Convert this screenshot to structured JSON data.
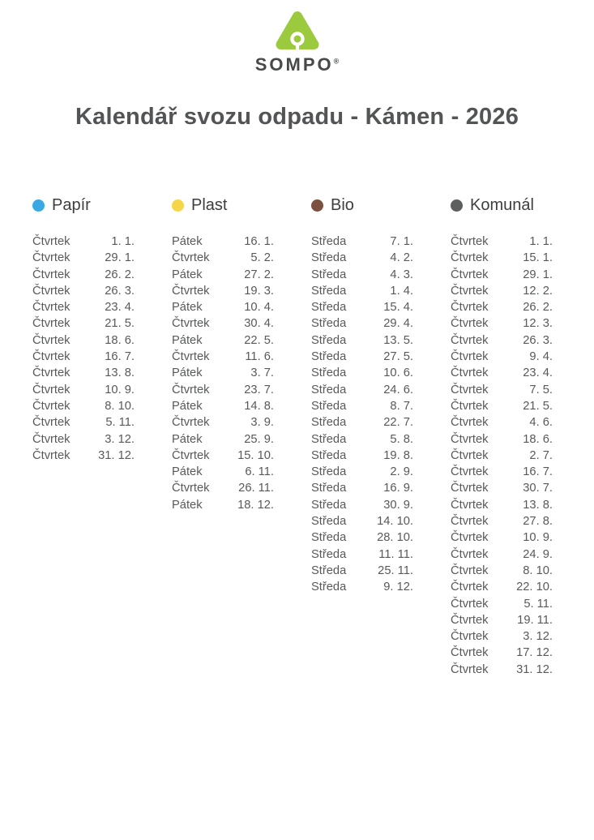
{
  "logo": {
    "brand": "SOMPO",
    "registered_mark": "®",
    "icon_green": "#9bca3e",
    "text_color": "#47484a"
  },
  "title": "Kalendář svozu odpadu - Kámen - 2026",
  "columns": [
    {
      "id": "papir",
      "label": "Papír",
      "dot_color": "#3aa9e3",
      "rows": [
        {
          "day": "Čtvrtek",
          "date": "1. 1."
        },
        {
          "day": "Čtvrtek",
          "date": "29. 1."
        },
        {
          "day": "Čtvrtek",
          "date": "26. 2."
        },
        {
          "day": "Čtvrtek",
          "date": "26. 3."
        },
        {
          "day": "Čtvrtek",
          "date": "23. 4."
        },
        {
          "day": "Čtvrtek",
          "date": "21. 5."
        },
        {
          "day": "Čtvrtek",
          "date": "18. 6."
        },
        {
          "day": "Čtvrtek",
          "date": "16. 7."
        },
        {
          "day": "Čtvrtek",
          "date": "13. 8."
        },
        {
          "day": "Čtvrtek",
          "date": "10. 9."
        },
        {
          "day": "Čtvrtek",
          "date": "8. 10."
        },
        {
          "day": "Čtvrtek",
          "date": "5. 11."
        },
        {
          "day": "Čtvrtek",
          "date": "3. 12."
        },
        {
          "day": "Čtvrtek",
          "date": "31. 12."
        }
      ]
    },
    {
      "id": "plast",
      "label": "Plast",
      "dot_color": "#f5d54a",
      "rows": [
        {
          "day": "Pátek",
          "date": "16. 1."
        },
        {
          "day": "Čtvrtek",
          "date": "5. 2."
        },
        {
          "day": "Pátek",
          "date": "27. 2."
        },
        {
          "day": "Čtvrtek",
          "date": "19. 3."
        },
        {
          "day": "Pátek",
          "date": "10. 4."
        },
        {
          "day": "Čtvrtek",
          "date": "30. 4."
        },
        {
          "day": "Pátek",
          "date": "22. 5."
        },
        {
          "day": "Čtvrtek",
          "date": "11. 6."
        },
        {
          "day": "Pátek",
          "date": "3. 7."
        },
        {
          "day": "Čtvrtek",
          "date": "23. 7."
        },
        {
          "day": "Pátek",
          "date": "14. 8."
        },
        {
          "day": "Čtvrtek",
          "date": "3. 9."
        },
        {
          "day": "Pátek",
          "date": "25. 9."
        },
        {
          "day": "Čtvrtek",
          "date": "15. 10."
        },
        {
          "day": "Pátek",
          "date": "6. 11."
        },
        {
          "day": "Čtvrtek",
          "date": "26. 11."
        },
        {
          "day": "Pátek",
          "date": "18. 12."
        }
      ]
    },
    {
      "id": "bio",
      "label": "Bio",
      "dot_color": "#7c5140",
      "rows": [
        {
          "day": "Středa",
          "date": "7. 1."
        },
        {
          "day": "Středa",
          "date": "4. 2."
        },
        {
          "day": "Středa",
          "date": "4. 3."
        },
        {
          "day": "Středa",
          "date": "1. 4."
        },
        {
          "day": "Středa",
          "date": "15. 4."
        },
        {
          "day": "Středa",
          "date": "29. 4."
        },
        {
          "day": "Středa",
          "date": "13. 5."
        },
        {
          "day": "Středa",
          "date": "27. 5."
        },
        {
          "day": "Středa",
          "date": "10. 6."
        },
        {
          "day": "Středa",
          "date": "24. 6."
        },
        {
          "day": "Středa",
          "date": "8. 7."
        },
        {
          "day": "Středa",
          "date": "22. 7."
        },
        {
          "day": "Středa",
          "date": "5. 8."
        },
        {
          "day": "Středa",
          "date": "19. 8."
        },
        {
          "day": "Středa",
          "date": "2. 9."
        },
        {
          "day": "Středa",
          "date": "16. 9."
        },
        {
          "day": "Středa",
          "date": "30. 9."
        },
        {
          "day": "Středa",
          "date": "14. 10."
        },
        {
          "day": "Středa",
          "date": "28. 10."
        },
        {
          "day": "Středa",
          "date": "11. 11."
        },
        {
          "day": "Středa",
          "date": "25. 11."
        },
        {
          "day": "Středa",
          "date": "9. 12."
        }
      ]
    },
    {
      "id": "komunal",
      "label": "Komunál",
      "dot_color": "#5d5e5e",
      "rows": [
        {
          "day": "Čtvrtek",
          "date": "1. 1."
        },
        {
          "day": "Čtvrtek",
          "date": "15. 1."
        },
        {
          "day": "Čtvrtek",
          "date": "29. 1."
        },
        {
          "day": "Čtvrtek",
          "date": "12. 2."
        },
        {
          "day": "Čtvrtek",
          "date": "26. 2."
        },
        {
          "day": "Čtvrtek",
          "date": "12. 3."
        },
        {
          "day": "Čtvrtek",
          "date": "26. 3."
        },
        {
          "day": "Čtvrtek",
          "date": "9. 4."
        },
        {
          "day": "Čtvrtek",
          "date": "23. 4."
        },
        {
          "day": "Čtvrtek",
          "date": "7. 5."
        },
        {
          "day": "Čtvrtek",
          "date": "21. 5."
        },
        {
          "day": "Čtvrtek",
          "date": "4. 6."
        },
        {
          "day": "Čtvrtek",
          "date": "18. 6."
        },
        {
          "day": "Čtvrtek",
          "date": "2. 7."
        },
        {
          "day": "Čtvrtek",
          "date": "16. 7."
        },
        {
          "day": "Čtvrtek",
          "date": "30. 7."
        },
        {
          "day": "Čtvrtek",
          "date": "13. 8."
        },
        {
          "day": "Čtvrtek",
          "date": "27. 8."
        },
        {
          "day": "Čtvrtek",
          "date": "10. 9."
        },
        {
          "day": "Čtvrtek",
          "date": "24. 9."
        },
        {
          "day": "Čtvrtek",
          "date": "8. 10."
        },
        {
          "day": "Čtvrtek",
          "date": "22. 10."
        },
        {
          "day": "Čtvrtek",
          "date": "5. 11."
        },
        {
          "day": "Čtvrtek",
          "date": "19. 11."
        },
        {
          "day": "Čtvrtek",
          "date": "3. 12."
        },
        {
          "day": "Čtvrtek",
          "date": "17. 12."
        },
        {
          "day": "Čtvrtek",
          "date": "31. 12."
        }
      ]
    }
  ]
}
